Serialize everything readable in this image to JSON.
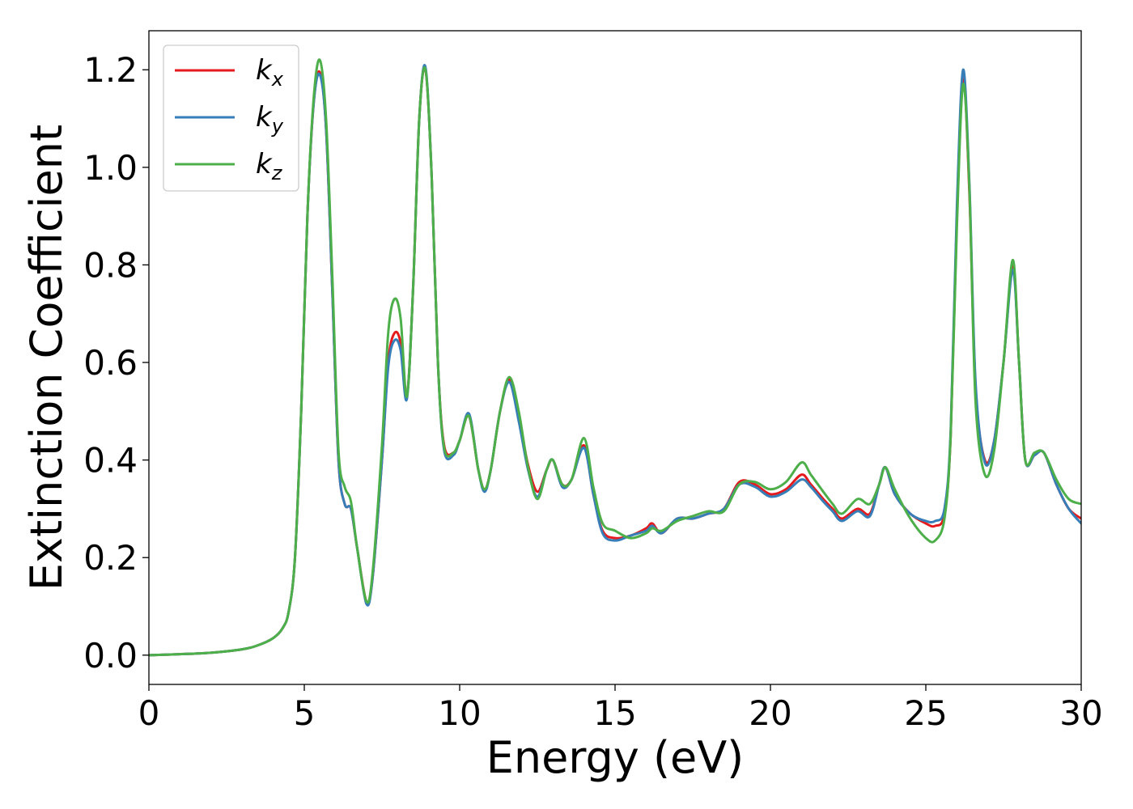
{
  "chart_data": {
    "type": "line",
    "title": "",
    "xlabel": "Energy (eV)",
    "ylabel": "Extinction Coefficient",
    "xlim": [
      0,
      30
    ],
    "ylim": [
      -0.06,
      1.28
    ],
    "xticks": [
      0,
      5,
      10,
      15,
      20,
      25,
      30
    ],
    "xtick_labels": [
      "0",
      "5",
      "10",
      "15",
      "20",
      "25",
      "30"
    ],
    "yticks": [
      0.0,
      0.2,
      0.4,
      0.6,
      0.8,
      1.0,
      1.2
    ],
    "ytick_labels": [
      "0.0",
      "0.2",
      "0.4",
      "0.6",
      "0.8",
      "1.0",
      "1.2"
    ],
    "grid": false,
    "legend_position": "top-left",
    "series": [
      {
        "name": "k",
        "subscript": "x",
        "color": "#e41a1c",
        "x": [
          0,
          1,
          2,
          3,
          3.5,
          4,
          4.3,
          4.5,
          4.7,
          4.9,
          5.1,
          5.3,
          5.5,
          5.7,
          5.9,
          6.1,
          6.3,
          6.5,
          6.7,
          7.0,
          7.2,
          7.5,
          7.7,
          7.9,
          8.1,
          8.3,
          8.5,
          8.7,
          8.9,
          9.1,
          9.3,
          9.5,
          9.8,
          10.0,
          10.3,
          10.6,
          10.8,
          11.0,
          11.3,
          11.6,
          11.9,
          12.2,
          12.5,
          12.8,
          13.0,
          13.3,
          13.6,
          14.0,
          14.3,
          14.6,
          15.0,
          15.5,
          16.0,
          16.2,
          16.5,
          17.0,
          17.5,
          18.0,
          18.5,
          19.0,
          19.5,
          20.0,
          20.5,
          21.0,
          21.3,
          21.7,
          22.0,
          22.3,
          22.8,
          23.2,
          23.5,
          23.7,
          24.0,
          24.5,
          25.0,
          25.3,
          25.6,
          25.8,
          26.0,
          26.2,
          26.4,
          26.6,
          26.9,
          27.2,
          27.5,
          27.8,
          28.0,
          28.2,
          28.5,
          28.8,
          29.2,
          29.6,
          30.0
        ],
        "y": [
          0.0,
          0.002,
          0.005,
          0.012,
          0.02,
          0.035,
          0.055,
          0.09,
          0.2,
          0.5,
          0.9,
          1.13,
          1.195,
          1.08,
          0.75,
          0.4,
          0.31,
          0.3,
          0.22,
          0.11,
          0.16,
          0.4,
          0.6,
          0.66,
          0.64,
          0.53,
          0.75,
          1.1,
          1.2,
          0.98,
          0.6,
          0.43,
          0.415,
          0.44,
          0.49,
          0.38,
          0.34,
          0.38,
          0.5,
          0.565,
          0.49,
          0.39,
          0.335,
          0.38,
          0.4,
          0.35,
          0.36,
          0.43,
          0.33,
          0.255,
          0.24,
          0.245,
          0.26,
          0.27,
          0.25,
          0.28,
          0.28,
          0.29,
          0.3,
          0.355,
          0.35,
          0.33,
          0.34,
          0.37,
          0.35,
          0.32,
          0.3,
          0.28,
          0.3,
          0.29,
          0.35,
          0.385,
          0.33,
          0.29,
          0.27,
          0.265,
          0.29,
          0.45,
          0.9,
          1.19,
          0.95,
          0.55,
          0.4,
          0.44,
          0.6,
          0.8,
          0.6,
          0.4,
          0.41,
          0.415,
          0.35,
          0.3,
          0.28
        ]
      },
      {
        "name": "k",
        "subscript": "y",
        "color": "#377eb8",
        "x": [
          0,
          1,
          2,
          3,
          3.5,
          4,
          4.3,
          4.5,
          4.7,
          4.9,
          5.1,
          5.3,
          5.5,
          5.7,
          5.9,
          6.1,
          6.3,
          6.5,
          6.7,
          7.0,
          7.2,
          7.5,
          7.7,
          7.9,
          8.1,
          8.3,
          8.5,
          8.7,
          8.9,
          9.1,
          9.3,
          9.5,
          9.8,
          10.0,
          10.3,
          10.6,
          10.8,
          11.0,
          11.3,
          11.6,
          11.9,
          12.2,
          12.5,
          12.8,
          13.0,
          13.3,
          13.6,
          14.0,
          14.3,
          14.6,
          15.0,
          15.5,
          16.0,
          16.2,
          16.5,
          17.0,
          17.5,
          18.0,
          18.5,
          19.0,
          19.5,
          20.0,
          20.5,
          21.0,
          21.3,
          21.7,
          22.0,
          22.3,
          22.8,
          23.2,
          23.5,
          23.7,
          24.0,
          24.5,
          25.0,
          25.3,
          25.6,
          25.8,
          26.0,
          26.2,
          26.4,
          26.6,
          26.9,
          27.2,
          27.5,
          27.8,
          28.0,
          28.2,
          28.5,
          28.8,
          29.2,
          29.6,
          30.0
        ],
        "y": [
          0.0,
          0.002,
          0.005,
          0.012,
          0.02,
          0.035,
          0.055,
          0.09,
          0.2,
          0.5,
          0.9,
          1.13,
          1.19,
          1.08,
          0.75,
          0.4,
          0.31,
          0.3,
          0.22,
          0.105,
          0.16,
          0.4,
          0.59,
          0.645,
          0.625,
          0.525,
          0.75,
          1.1,
          1.205,
          0.98,
          0.6,
          0.42,
          0.41,
          0.44,
          0.495,
          0.38,
          0.335,
          0.38,
          0.5,
          0.56,
          0.48,
          0.38,
          0.325,
          0.38,
          0.4,
          0.345,
          0.36,
          0.425,
          0.33,
          0.25,
          0.235,
          0.245,
          0.255,
          0.265,
          0.25,
          0.28,
          0.28,
          0.29,
          0.3,
          0.35,
          0.345,
          0.325,
          0.335,
          0.36,
          0.345,
          0.315,
          0.295,
          0.275,
          0.295,
          0.285,
          0.35,
          0.385,
          0.33,
          0.29,
          0.275,
          0.275,
          0.3,
          0.46,
          0.92,
          1.2,
          0.97,
          0.56,
          0.395,
          0.44,
          0.6,
          0.79,
          0.6,
          0.4,
          0.41,
          0.415,
          0.35,
          0.3,
          0.27
        ]
      },
      {
        "name": "k",
        "subscript": "z",
        "color": "#4daf4a",
        "x": [
          0,
          1,
          2,
          3,
          3.5,
          4,
          4.3,
          4.5,
          4.7,
          4.9,
          5.1,
          5.3,
          5.5,
          5.7,
          5.9,
          6.1,
          6.3,
          6.5,
          6.7,
          7.0,
          7.2,
          7.5,
          7.7,
          7.9,
          8.1,
          8.3,
          8.5,
          8.7,
          8.9,
          9.1,
          9.3,
          9.5,
          9.8,
          10.0,
          10.3,
          10.6,
          10.8,
          11.0,
          11.3,
          11.6,
          11.9,
          12.2,
          12.5,
          12.8,
          13.0,
          13.3,
          13.6,
          14.0,
          14.3,
          14.6,
          15.0,
          15.5,
          16.0,
          16.2,
          16.5,
          17.0,
          17.5,
          18.0,
          18.5,
          19.0,
          19.5,
          20.0,
          20.5,
          21.0,
          21.3,
          21.7,
          22.0,
          22.3,
          22.8,
          23.2,
          23.5,
          23.7,
          24.0,
          24.5,
          25.0,
          25.3,
          25.6,
          25.8,
          26.0,
          26.2,
          26.4,
          26.6,
          26.9,
          27.2,
          27.5,
          27.8,
          28.0,
          28.2,
          28.5,
          28.8,
          29.2,
          29.6,
          30.0
        ],
        "y": [
          0.0,
          0.002,
          0.005,
          0.012,
          0.02,
          0.035,
          0.055,
          0.09,
          0.2,
          0.5,
          0.9,
          1.14,
          1.22,
          1.1,
          0.78,
          0.42,
          0.345,
          0.315,
          0.22,
          0.11,
          0.17,
          0.43,
          0.66,
          0.73,
          0.69,
          0.53,
          0.75,
          1.1,
          1.2,
          0.98,
          0.6,
          0.425,
          0.415,
          0.44,
          0.49,
          0.38,
          0.34,
          0.38,
          0.5,
          0.57,
          0.5,
          0.385,
          0.32,
          0.38,
          0.4,
          0.35,
          0.36,
          0.445,
          0.345,
          0.27,
          0.255,
          0.24,
          0.25,
          0.26,
          0.255,
          0.275,
          0.285,
          0.295,
          0.295,
          0.35,
          0.355,
          0.34,
          0.355,
          0.395,
          0.37,
          0.335,
          0.31,
          0.29,
          0.32,
          0.31,
          0.35,
          0.385,
          0.34,
          0.28,
          0.24,
          0.235,
          0.28,
          0.45,
          0.88,
          1.17,
          0.96,
          0.52,
          0.37,
          0.42,
          0.6,
          0.81,
          0.6,
          0.4,
          0.415,
          0.415,
          0.36,
          0.32,
          0.31
        ]
      }
    ]
  }
}
